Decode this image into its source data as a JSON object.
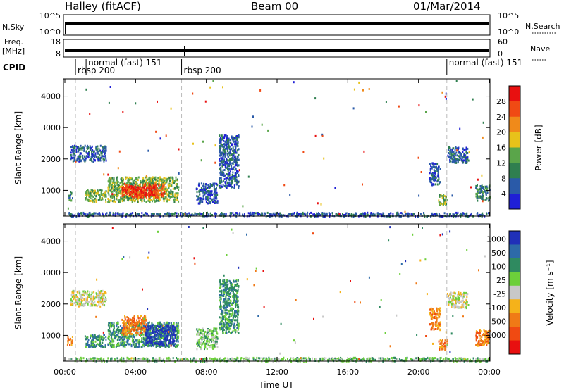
{
  "header": {
    "site": "Halley (fitACF)",
    "beam": "Beam 00",
    "date": "01/Mar/2014"
  },
  "top_panels": {
    "nsky": {
      "label": "N.Sky",
      "ticks_left": [
        "10^5",
        "10^0"
      ],
      "ticks_right": [
        "10^5",
        "10^0"
      ],
      "right_label": "N.Search"
    },
    "freq": {
      "label_line1": "Freq.",
      "label_line2": "[MHz]",
      "ticks_left": [
        "18",
        "8"
      ],
      "ticks_right": [
        "60",
        "0"
      ],
      "right_label": "Nave"
    },
    "cpid": {
      "label": "CPID",
      "segments": [
        {
          "text": "rbsp 200",
          "start_hour": 0.6
        },
        {
          "text": "normal (fast) 151",
          "start_hour": 1.2
        },
        {
          "text": "rbsp 200",
          "start_hour": 6.6
        },
        {
          "text": "normal (fast) 151",
          "start_hour": 21.6
        }
      ]
    }
  },
  "chart_data": [
    {
      "type": "heatmap",
      "name": "power",
      "xlabel": "Time UT",
      "ylabel": "Slant Range [km]",
      "xlim": [
        "00:00",
        "00:00"
      ],
      "x_hours": [
        0,
        24
      ],
      "ylim": [
        180,
        4550
      ],
      "x_ticks": [
        "00:00",
        "04:00",
        "08:00",
        "12:00",
        "16:00",
        "20:00",
        "00:00"
      ],
      "y_ticks": [
        1000,
        2000,
        3000,
        4000
      ],
      "colorbar": {
        "label": "Power [dB]",
        "ticks": [
          "4",
          "8",
          "12",
          "16",
          "20",
          "24",
          "28"
        ],
        "colors": [
          "#1f1fd6",
          "#2a5aa8",
          "#2f7f4f",
          "#5aa54a",
          "#e8c21a",
          "#f08a1a",
          "#f04a14",
          "#e81010"
        ]
      },
      "regions": [
        {
          "x": [
            0.3,
            2.3
          ],
          "y": [
            1950,
            2450
          ],
          "level": 1
        },
        {
          "x": [
            0.2,
            0.4
          ],
          "y": [
            700,
            1000
          ],
          "level": 2
        },
        {
          "x": [
            1.1,
            2.3
          ],
          "y": [
            650,
            1050
          ],
          "level": 3
        },
        {
          "x": [
            2.4,
            6.4
          ],
          "y": [
            650,
            1450
          ],
          "level": 3
        },
        {
          "x": [
            3.2,
            5.6
          ],
          "y": [
            800,
            1250
          ],
          "level": 6
        },
        {
          "x": [
            3.6,
            5.0
          ],
          "y": [
            850,
            1150
          ],
          "level": 7
        },
        {
          "x": [
            7.4,
            8.6
          ],
          "y": [
            600,
            1250
          ],
          "level": 1
        },
        {
          "x": [
            8.7,
            9.8
          ],
          "y": [
            1100,
            2800
          ],
          "level": 1
        },
        {
          "x": [
            20.6,
            21.2
          ],
          "y": [
            1200,
            1900
          ],
          "level": 1
        },
        {
          "x": [
            21.1,
            21.6
          ],
          "y": [
            550,
            900
          ],
          "level": 3
        },
        {
          "x": [
            21.6,
            22.8
          ],
          "y": [
            1900,
            2400
          ],
          "level": 1
        },
        {
          "x": [
            23.2,
            24.0
          ],
          "y": [
            700,
            1200
          ],
          "level": 2
        },
        {
          "x": [
            0.2,
            24.0
          ],
          "y": [
            200,
            320
          ],
          "level": 1
        }
      ]
    },
    {
      "type": "heatmap",
      "name": "velocity",
      "xlabel": "Time UT",
      "ylabel": "Slant Range [km]",
      "xlim": [
        "00:00",
        "00:00"
      ],
      "x_hours": [
        0,
        24
      ],
      "ylim": [
        180,
        4550
      ],
      "x_ticks": [
        "00:00",
        "04:00",
        "08:00",
        "12:00",
        "16:00",
        "20:00",
        "00:00"
      ],
      "y_ticks": [
        1000,
        2000,
        3000,
        4000
      ],
      "colorbar": {
        "label": "Velocity [m s⁻¹]",
        "ticks": [
          "1000",
          "500",
          "100",
          "25",
          "-25",
          "-100",
          "-500",
          "-1000"
        ],
        "colors": [
          "#2030b8",
          "#2d6aa8",
          "#2f8a60",
          "#6ccf3a",
          "#c8c8c8",
          "#f5b21a",
          "#f07a16",
          "#f04a12",
          "#e81010"
        ]
      },
      "regions": [
        {
          "x": [
            0.3,
            2.3
          ],
          "y": [
            1950,
            2450
          ],
          "level": 4
        },
        {
          "x": [
            0.1,
            0.4
          ],
          "y": [
            700,
            1000
          ],
          "level": 6
        },
        {
          "x": [
            1.1,
            2.3
          ],
          "y": [
            650,
            1050
          ],
          "level": 2
        },
        {
          "x": [
            2.4,
            6.4
          ],
          "y": [
            650,
            1450
          ],
          "level": 2
        },
        {
          "x": [
            3.2,
            4.6
          ],
          "y": [
            1050,
            1650
          ],
          "level": 6
        },
        {
          "x": [
            4.5,
            6.2
          ],
          "y": [
            700,
            1350
          ],
          "level": 0
        },
        {
          "x": [
            7.4,
            8.6
          ],
          "y": [
            600,
            1250
          ],
          "level": 3
        },
        {
          "x": [
            8.7,
            9.8
          ],
          "y": [
            1100,
            2800
          ],
          "level": 2
        },
        {
          "x": [
            20.6,
            21.2
          ],
          "y": [
            1200,
            1900
          ],
          "level": 6
        },
        {
          "x": [
            21.1,
            21.6
          ],
          "y": [
            550,
            900
          ],
          "level": 6
        },
        {
          "x": [
            21.6,
            22.8
          ],
          "y": [
            1900,
            2400
          ],
          "level": 4
        },
        {
          "x": [
            23.2,
            24.0
          ],
          "y": [
            700,
            1200
          ],
          "level": 6
        },
        {
          "x": [
            0.2,
            24.0
          ],
          "y": [
            200,
            320
          ],
          "level": 3
        }
      ]
    }
  ]
}
